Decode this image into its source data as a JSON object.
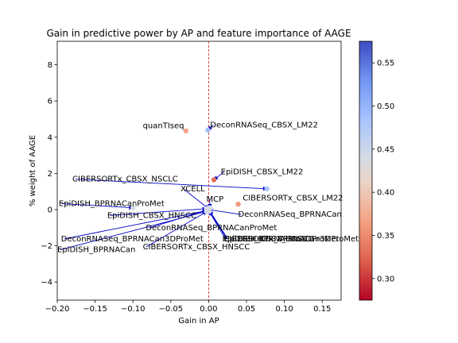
{
  "chart_data": {
    "type": "scatter",
    "title": "Gain in predictive power by AP and feature importance of AAGE",
    "xlabel": "Gain in AP",
    "ylabel": "% weight of AAGE",
    "xlim": [
      -0.2,
      0.175
    ],
    "ylim": [
      -5.0,
      9.3
    ],
    "xticks": [
      -0.2,
      -0.15,
      -0.1,
      -0.05,
      0.0,
      0.05,
      0.1,
      0.15
    ],
    "xtick_labels": [
      "−0.20",
      "−0.15",
      "−0.10",
      "−0.05",
      "0.00",
      "0.05",
      "0.10",
      "0.15"
    ],
    "yticks": [
      -4,
      -2,
      0,
      2,
      4,
      6,
      8
    ],
    "ytick_labels": [
      "−4",
      "−2",
      "0",
      "2",
      "4",
      "6",
      "8"
    ],
    "vline_x": 0.0,
    "colorbar": {
      "min": 0.275,
      "max": 0.575,
      "ticks": [
        0.3,
        0.35,
        0.4,
        0.45,
        0.5,
        0.55
      ],
      "tick_labels": [
        "0.30",
        "0.35",
        "0.40",
        "0.45",
        "0.50",
        "0.55"
      ],
      "colormap": "coolwarm_r"
    },
    "points": [
      {
        "label": "quanTIseq",
        "x": -0.03,
        "y": 4.35,
        "c": 0.37,
        "label_x": -0.087,
        "label_y": 4.5,
        "arrow": false
      },
      {
        "label": "DeconRNASeq_CBSX_LM22",
        "x": -0.001,
        "y": 4.4,
        "c": 0.49,
        "label_x": 0.002,
        "label_y": 4.55,
        "arrow": true
      },
      {
        "label": "EpiDISH_CBSX_LM22",
        "x": 0.007,
        "y": 1.65,
        "c": 0.33,
        "label_x": 0.016,
        "label_y": 1.95,
        "arrow": true
      },
      {
        "label": "CIBERSORTx_CBSX_NSCLC",
        "x": 0.077,
        "y": 1.15,
        "c": 0.48,
        "label_x": -0.18,
        "label_y": 1.55,
        "arrow": true
      },
      {
        "label": "CIBERSORTx_CBSX_LM22",
        "x": 0.039,
        "y": 0.3,
        "c": 0.36,
        "label_x": 0.045,
        "label_y": 0.5,
        "arrow": false
      },
      {
        "label": "XCELL",
        "x": 0.0,
        "y": 0.05,
        "c": 0.44,
        "label_x": -0.037,
        "label_y": 1.0,
        "arrow": true
      },
      {
        "label": "MCP",
        "x": 0.002,
        "y": 0.1,
        "c": 0.44,
        "label_x": -0.003,
        "label_y": 0.45,
        "arrow": true
      },
      {
        "label": "EpiDISH_BPRNACanProMet",
        "x": -0.1,
        "y": 0.1,
        "c": 0.44,
        "label_x": -0.198,
        "label_y": 0.2,
        "arrow": true
      },
      {
        "label": "EpiDISH_CBSX_HNSCC",
        "x": -0.003,
        "y": 0.05,
        "c": 0.44,
        "label_x": -0.134,
        "label_y": -0.45,
        "arrow": true
      },
      {
        "label": "DeconRNASeq_BPRNACan",
        "x": 0.0,
        "y": 0.0,
        "c": 0.44,
        "label_x": 0.039,
        "label_y": -0.4,
        "arrow": true
      },
      {
        "label": "DeconRNASeq_BPRNACanProMet",
        "x": -0.001,
        "y": 0.0,
        "c": 0.44,
        "label_x": -0.083,
        "label_y": -1.15,
        "arrow": true
      },
      {
        "label": "DeconRNASeq_BPRNACan3DProMet",
        "x": -0.002,
        "y": -0.05,
        "c": 0.44,
        "label_x": -0.195,
        "label_y": -1.75,
        "arrow": true
      },
      {
        "label": "EpiDISH_BPRNACan3DProMet",
        "x": 0.0,
        "y": -0.05,
        "c": 0.44,
        "label_x": 0.018,
        "label_y": -1.75,
        "arrow": true
      },
      {
        "label": "CIBERSORTx_BPRNACan3DProMet",
        "x": 0.001,
        "y": -0.1,
        "c": 0.44,
        "label_x": 0.02,
        "label_y": -1.75,
        "arrow": true
      },
      {
        "label": "EpiDISH_CBSX_HNSCC",
        "x": 0.001,
        "y": -0.05,
        "c": 0.44,
        "label_x": 0.021,
        "label_y": -1.75,
        "arrow": true
      },
      {
        "label": "EpiDISH_BPRNACan",
        "x": -0.003,
        "y": -0.1,
        "c": 0.44,
        "label_x": -0.2,
        "label_y": -2.35,
        "arrow": true
      },
      {
        "label": "CIBERSORTx_CBSX_HNSCC",
        "x": -0.002,
        "y": -0.1,
        "c": 0.44,
        "label_x": -0.087,
        "label_y": -2.2,
        "arrow": true
      }
    ]
  }
}
